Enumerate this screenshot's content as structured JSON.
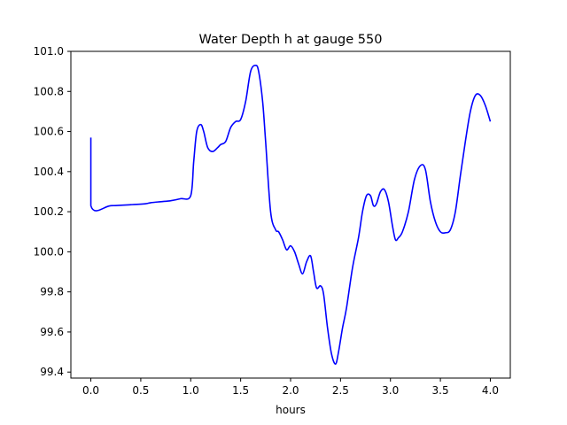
{
  "chart_data": {
    "type": "line",
    "title": "Water Depth h at gauge 550",
    "xlabel": "hours",
    "ylabel": "",
    "xlim": [
      -0.2,
      4.2
    ],
    "ylim": [
      99.37,
      101.0
    ],
    "grid": false,
    "x_ticks": [
      0.0,
      0.5,
      1.0,
      1.5,
      2.0,
      2.5,
      3.0,
      3.5,
      4.0
    ],
    "x_tick_labels": [
      "0.0",
      "0.5",
      "1.0",
      "1.5",
      "2.0",
      "2.5",
      "3.0",
      "3.5",
      "4.0"
    ],
    "y_ticks": [
      99.4,
      99.6,
      99.8,
      100.0,
      100.2,
      100.4,
      100.6,
      100.8,
      101.0
    ],
    "y_tick_labels": [
      "99.4",
      "99.6",
      "99.8",
      "100.0",
      "100.2",
      "100.4",
      "100.6",
      "100.8",
      "101.0"
    ],
    "series": [
      {
        "color": "#0000ff",
        "x": [
          0.0,
          0.0,
          0.2,
          0.4,
          0.55,
          0.6,
          0.7,
          0.8,
          0.9,
          1.0,
          1.03,
          1.06,
          1.1,
          1.13,
          1.17,
          1.22,
          1.27,
          1.3,
          1.35,
          1.4,
          1.45,
          1.5,
          1.55,
          1.6,
          1.65,
          1.68,
          1.72,
          1.75,
          1.8,
          1.85,
          1.88,
          1.92,
          1.96,
          2.0,
          2.04,
          2.08,
          2.12,
          2.16,
          2.2,
          2.23,
          2.26,
          2.3,
          2.33,
          2.37,
          2.41,
          2.45,
          2.48,
          2.52,
          2.56,
          2.62,
          2.68,
          2.72,
          2.76,
          2.8,
          2.83,
          2.86,
          2.9,
          2.94,
          2.98,
          3.02,
          3.05,
          3.08,
          3.12,
          3.18,
          3.24,
          3.3,
          3.35,
          3.4,
          3.45,
          3.5,
          3.55,
          3.6,
          3.65,
          3.7,
          3.75,
          3.8,
          3.85,
          3.9,
          3.95,
          4.0
        ],
        "y": [
          100.57,
          100.23,
          100.23,
          100.235,
          100.24,
          100.245,
          100.25,
          100.255,
          100.265,
          100.28,
          100.45,
          100.6,
          100.635,
          100.6,
          100.52,
          100.5,
          100.52,
          100.535,
          100.55,
          100.62,
          100.65,
          100.66,
          100.75,
          100.9,
          100.93,
          100.9,
          100.75,
          100.55,
          100.2,
          100.11,
          100.1,
          100.06,
          100.01,
          100.03,
          100.0,
          99.94,
          99.89,
          99.95,
          99.98,
          99.9,
          99.82,
          99.83,
          99.79,
          99.62,
          99.49,
          99.44,
          99.5,
          99.62,
          99.72,
          99.92,
          100.07,
          100.2,
          100.28,
          100.28,
          100.23,
          100.24,
          100.3,
          100.31,
          100.25,
          100.13,
          100.06,
          100.07,
          100.1,
          100.2,
          100.36,
          100.43,
          100.41,
          100.25,
          100.15,
          100.1,
          100.095,
          100.11,
          100.2,
          100.38,
          100.55,
          100.7,
          100.78,
          100.78,
          100.73,
          100.65
        ]
      }
    ]
  }
}
